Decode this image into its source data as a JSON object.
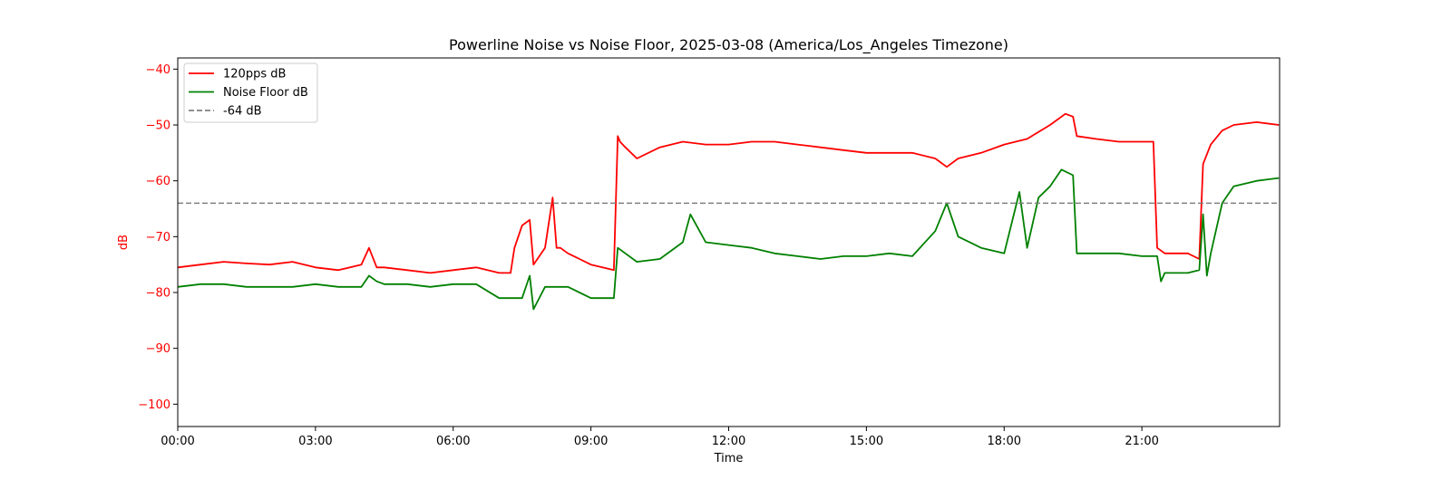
{
  "chart_data": {
    "type": "line",
    "title": "Powerline Noise vs Noise Floor, 2025-03-08 (America/Los_Angeles Timezone)",
    "xlabel": "Time",
    "ylabel": "dB",
    "xlim": [
      "00:00",
      "24:00"
    ],
    "ylim": [
      -104,
      -38
    ],
    "x_ticks": [
      "00:00",
      "03:00",
      "06:00",
      "09:00",
      "12:00",
      "15:00",
      "18:00",
      "21:00"
    ],
    "y_ticks": [
      -40,
      -50,
      -60,
      -70,
      -80,
      -90,
      -100
    ],
    "grid": false,
    "legend_position": "top-left",
    "reference_line": {
      "name": "-64 dB",
      "y": -64,
      "color": "#808080",
      "style": "dashed"
    },
    "series": [
      {
        "name": "120pps dB",
        "color": "#ff0000",
        "x": [
          "00:00",
          "00:30",
          "01:00",
          "01:30",
          "02:00",
          "02:30",
          "03:00",
          "03:30",
          "04:00",
          "04:10",
          "04:20",
          "04:30",
          "05:00",
          "05:30",
          "06:00",
          "06:30",
          "07:00",
          "07:15",
          "07:20",
          "07:30",
          "07:40",
          "07:45",
          "08:00",
          "08:10",
          "08:15",
          "08:20",
          "08:30",
          "08:45",
          "09:00",
          "09:15",
          "09:30",
          "09:35",
          "09:38",
          "09:45",
          "10:00",
          "10:30",
          "11:00",
          "11:30",
          "12:00",
          "12:30",
          "13:00",
          "13:30",
          "14:00",
          "14:30",
          "15:00",
          "15:30",
          "16:00",
          "16:30",
          "16:45",
          "17:00",
          "17:30",
          "18:00",
          "18:30",
          "19:00",
          "19:20",
          "19:30",
          "19:35",
          "20:00",
          "20:30",
          "21:00",
          "21:15",
          "21:20",
          "21:30",
          "22:00",
          "22:15",
          "22:20",
          "22:30",
          "22:45",
          "23:00",
          "23:30",
          "23:59"
        ],
        "values": [
          -75.5,
          -75,
          -74.5,
          -74.8,
          -75,
          -74.5,
          -75.5,
          -76,
          -75,
          -72,
          -75.5,
          -75.5,
          -76,
          -76.5,
          -76,
          -75.5,
          -76.5,
          -76.5,
          -72,
          -68,
          -67,
          -75,
          -72,
          -63,
          -72,
          -72,
          -73,
          -74,
          -75,
          -75.5,
          -76,
          -52,
          -53,
          -54,
          -56,
          -54,
          -53,
          -53.5,
          -53.5,
          -53,
          -53,
          -53.5,
          -54,
          -54.5,
          -55,
          -55,
          -55,
          -56,
          -57.5,
          -56,
          -55,
          -53.5,
          -52.5,
          -50,
          -48,
          -48.5,
          -52,
          -52.5,
          -53,
          -53,
          -53,
          -72,
          -73,
          -73,
          -74,
          -57,
          -53.5,
          -51,
          -50,
          -49.5,
          -50
        ]
      },
      {
        "name": "Noise Floor dB",
        "color": "#008000",
        "x": [
          "00:00",
          "00:30",
          "01:00",
          "01:30",
          "02:00",
          "02:30",
          "03:00",
          "03:30",
          "04:00",
          "04:10",
          "04:20",
          "04:30",
          "05:00",
          "05:30",
          "06:00",
          "06:30",
          "07:00",
          "07:30",
          "07:40",
          "07:45",
          "08:00",
          "08:30",
          "09:00",
          "09:25",
          "09:30",
          "09:35",
          "10:00",
          "10:30",
          "11:00",
          "11:10",
          "11:30",
          "12:00",
          "12:30",
          "13:00",
          "13:30",
          "14:00",
          "14:30",
          "15:00",
          "15:30",
          "16:00",
          "16:30",
          "16:45",
          "17:00",
          "17:30",
          "18:00",
          "18:20",
          "18:30",
          "18:45",
          "19:00",
          "19:15",
          "19:30",
          "19:35",
          "20:00",
          "20:30",
          "21:00",
          "21:20",
          "21:25",
          "21:30",
          "22:00",
          "22:15",
          "22:20",
          "22:25",
          "22:30",
          "22:45",
          "23:00",
          "23:30",
          "23:59"
        ],
        "values": [
          -79,
          -78.5,
          -78.5,
          -79,
          -79,
          -79,
          -78.5,
          -79,
          -79,
          -77,
          -78,
          -78.5,
          -78.5,
          -79,
          -78.5,
          -78.5,
          -81,
          -81,
          -77,
          -83,
          -79,
          -79,
          -81,
          -81,
          -81,
          -72,
          -74.5,
          -74,
          -71,
          -66,
          -71,
          -71.5,
          -72,
          -73,
          -73.5,
          -74,
          -73.5,
          -73.5,
          -73,
          -73.5,
          -69,
          -64,
          -70,
          -72,
          -73,
          -62,
          -72,
          -63,
          -61,
          -58,
          -59,
          -73,
          -73,
          -73,
          -73.5,
          -73.5,
          -78,
          -76.5,
          -76.5,
          -76,
          -66,
          -77,
          -73,
          -64,
          -61,
          -60,
          -59.5
        ]
      }
    ]
  }
}
